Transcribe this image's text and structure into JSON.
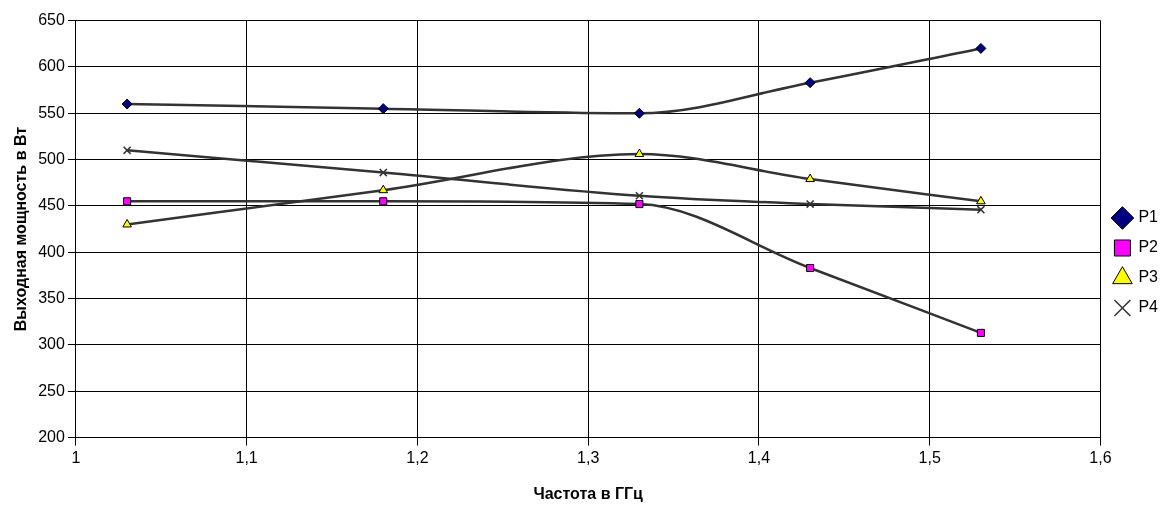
{
  "chart_data": {
    "type": "line",
    "xlabel": "Частота в ГГц",
    "ylabel": "Выходная мощность в Вт",
    "x": [
      1.03,
      1.18,
      1.33,
      1.43,
      1.53
    ],
    "series": [
      {
        "name": "P1",
        "color": "#000080",
        "marker": "diamond",
        "values": [
          560,
          555,
          550,
          583,
          620
        ]
      },
      {
        "name": "P2",
        "color": "#ff00ff",
        "marker": "square",
        "values": [
          455,
          455,
          452,
          383,
          313
        ]
      },
      {
        "name": "P3",
        "color": "#ffff00",
        "marker": "triangle",
        "values": [
          430,
          467,
          506,
          479,
          455
        ]
      },
      {
        "name": "P4",
        "color": "#333333",
        "marker": "cross",
        "values": [
          510,
          486,
          461,
          452,
          446
        ]
      }
    ],
    "xlim": [
      1,
      1.6
    ],
    "xticks": [
      1,
      {
        "value": 1.1,
        "label": "1,1"
      },
      {
        "value": 1.2,
        "label": "1,2"
      },
      {
        "value": 1.3,
        "label": "1,3"
      },
      {
        "value": 1.4,
        "label": "1,4"
      },
      {
        "value": 1.5,
        "label": "1,5"
      },
      {
        "value": 1.6,
        "label": "1,6"
      }
    ],
    "ylim": [
      200,
      650
    ],
    "yticks": [
      200,
      250,
      300,
      350,
      400,
      450,
      500,
      550,
      600,
      650
    ],
    "grid": true,
    "legend": "right",
    "line_style": "solid"
  }
}
